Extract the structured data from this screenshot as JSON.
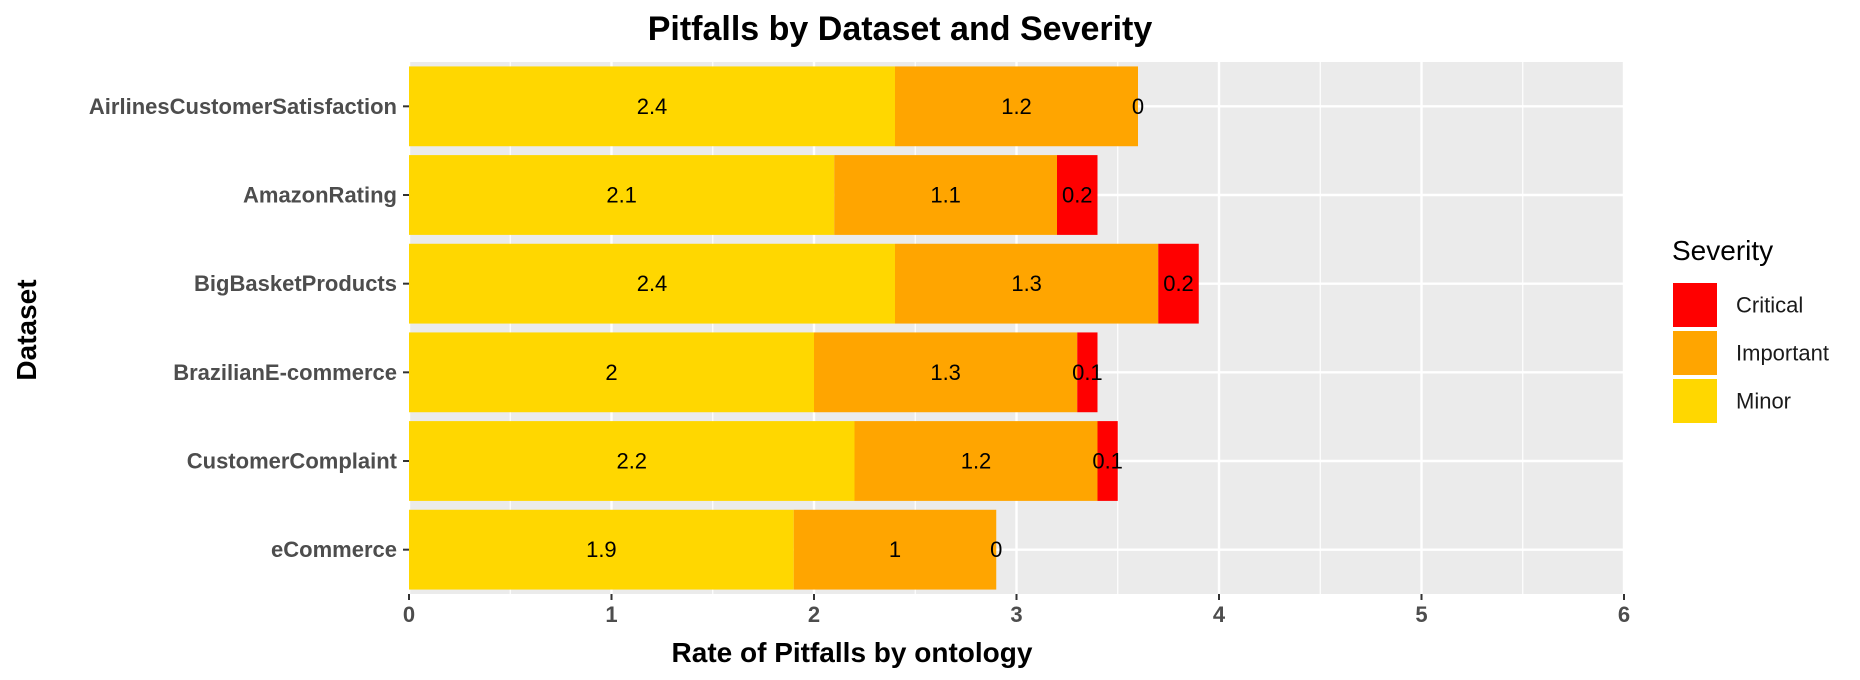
{
  "chart_data": {
    "type": "bar",
    "orientation": "horizontal",
    "stacked": true,
    "title": "Pitfalls by Dataset and Severity",
    "xlabel": "Rate of Pitfalls by ontology",
    "ylabel": "Dataset",
    "xlim": [
      0,
      6
    ],
    "xticks": [
      "0",
      "1",
      "2",
      "3",
      "4",
      "5",
      "6"
    ],
    "grid": true,
    "legend_position": "right",
    "categories": [
      "AirlinesCustomerSatisfaction",
      "AmazonRating",
      "BigBasketProducts",
      "BrazilianE-commerce",
      "CustomerComplaint",
      "eCommerce"
    ],
    "series": [
      {
        "name": "Minor",
        "color": "#FFD700",
        "values": [
          2.4,
          2.1,
          2.4,
          2,
          2.2,
          1.9
        ],
        "labels": [
          "2.4",
          "2.1",
          "2.4",
          "2",
          "2.2",
          "1.9"
        ]
      },
      {
        "name": "Important",
        "color": "#FFA500",
        "values": [
          1.2,
          1.1,
          1.3,
          1.3,
          1.2,
          1
        ],
        "labels": [
          "1.2",
          "1.1",
          "1.3",
          "1.3",
          "1.2",
          "1"
        ]
      },
      {
        "name": "Critical",
        "color": "#FF0000",
        "values": [
          0,
          0.2,
          0.2,
          0.1,
          0.1,
          0
        ],
        "labels": [
          "0",
          "0.2",
          "0.2",
          "0.1",
          "0.1",
          "0"
        ]
      }
    ],
    "legend": {
      "title": "Severity",
      "items": [
        {
          "name": "Critical",
          "color": "#FF0000"
        },
        {
          "name": "Important",
          "color": "#FFA500"
        },
        {
          "name": "Minor",
          "color": "#FFD700"
        }
      ]
    },
    "panel_background": "#EBEBEB",
    "gridline_color": "#FFFFFF"
  }
}
